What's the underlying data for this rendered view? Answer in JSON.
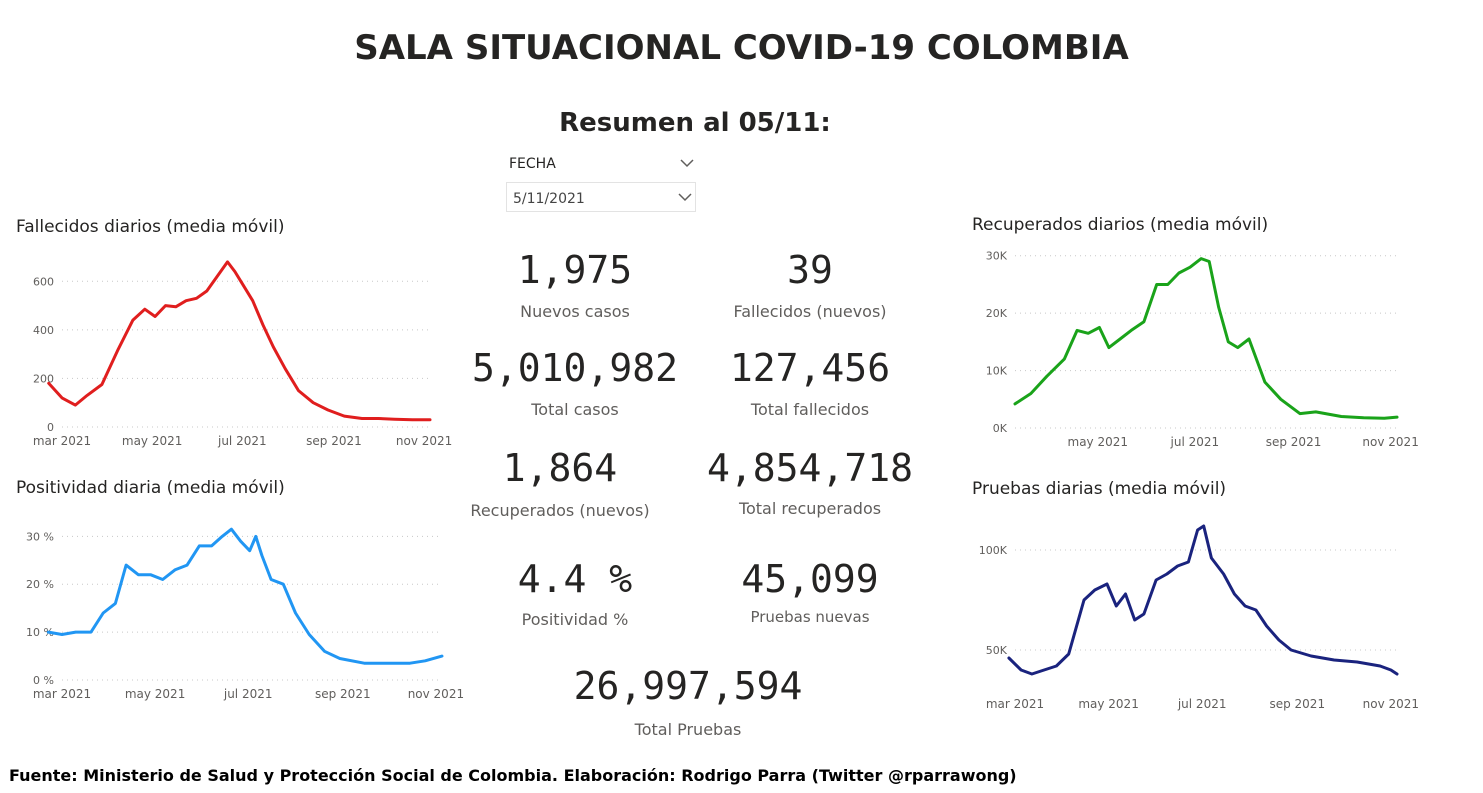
{
  "header": {
    "title": "SALA SITUACIONAL COVID-19 COLOMBIA",
    "subtitle": "Resumen al 05/11:"
  },
  "slicer": {
    "label": "FECHA",
    "value": "5/11/2021"
  },
  "kpis": [
    {
      "value": "1,975",
      "label": "Nuevos casos"
    },
    {
      "value": "39",
      "label": "Fallecidos (nuevos)"
    },
    {
      "value": "5,010,982",
      "label": "Total casos"
    },
    {
      "value": "127,456",
      "label": "Total fallecidos"
    },
    {
      "value": "1,864",
      "label": "Recuperados (nuevos)"
    },
    {
      "value": "4,854,718",
      "label": "Total recuperados"
    },
    {
      "value": "4.4 %",
      "label": "Positividad %"
    },
    {
      "value": "45,099",
      "label": "Pruebas nuevas"
    },
    {
      "value": "26,997,594",
      "label": "Total Pruebas"
    }
  ],
  "footer": "Fuente: Ministerio de Salud y Protección Social de Colombia. Elaboración: Rodrigo Parra (Twitter @rparrawong)",
  "chart_data": [
    {
      "type": "line",
      "title": "Fallecidos diarios (media móvil)",
      "color": "#e01e1e",
      "x_range": [
        "2021-03-01",
        "2021-11-05"
      ],
      "x_ticks": [
        "mar 2021",
        "may 2021",
        "jul 2021",
        "sep 2021",
        "nov 2021"
      ],
      "y_ticks": [
        0,
        200,
        400,
        600
      ],
      "y_tick_labels": [
        "0",
        "200",
        "400",
        "600"
      ],
      "ylim": [
        0,
        700
      ],
      "grid": true,
      "series": [
        {
          "x": [
            "2021-02-20",
            "2021-03-01",
            "2021-03-10",
            "2021-03-18",
            "2021-03-28",
            "2021-04-08",
            "2021-04-18",
            "2021-04-26",
            "2021-05-03",
            "2021-05-10",
            "2021-05-17",
            "2021-05-24",
            "2021-05-31",
            "2021-06-07",
            "2021-06-14",
            "2021-06-21",
            "2021-06-26",
            "2021-07-01",
            "2021-07-08",
            "2021-07-15",
            "2021-07-22",
            "2021-07-30",
            "2021-08-08",
            "2021-08-18",
            "2021-08-28",
            "2021-09-08",
            "2021-09-20",
            "2021-10-01",
            "2021-10-12",
            "2021-10-24",
            "2021-11-05"
          ],
          "y": [
            180,
            120,
            90,
            130,
            175,
            320,
            440,
            485,
            455,
            500,
            495,
            520,
            530,
            560,
            620,
            680,
            640,
            590,
            520,
            420,
            330,
            240,
            150,
            100,
            70,
            45,
            35,
            35,
            32,
            30,
            30
          ]
        }
      ]
    },
    {
      "type": "line",
      "title": "Positividad diaria (media móvil)",
      "color": "#2196f3",
      "x_range": [
        "2021-03-01",
        "2021-11-05"
      ],
      "x_ticks": [
        "mar 2021",
        "may 2021",
        "jul 2021",
        "sep 2021",
        "nov 2021"
      ],
      "y_ticks": [
        0,
        10,
        20,
        30
      ],
      "y_tick_labels": [
        "0 %",
        "10 %",
        "20 %",
        "30 %"
      ],
      "ylim": [
        0,
        33
      ],
      "grid": true,
      "series": [
        {
          "x": [
            "2021-02-20",
            "2021-03-01",
            "2021-03-10",
            "2021-03-20",
            "2021-03-28",
            "2021-04-05",
            "2021-04-12",
            "2021-04-20",
            "2021-04-28",
            "2021-05-06",
            "2021-05-14",
            "2021-05-22",
            "2021-05-30",
            "2021-06-07",
            "2021-06-14",
            "2021-06-20",
            "2021-06-26",
            "2021-07-02",
            "2021-07-06",
            "2021-07-10",
            "2021-07-16",
            "2021-07-24",
            "2021-08-01",
            "2021-08-10",
            "2021-08-20",
            "2021-08-30",
            "2021-09-15",
            "2021-10-01",
            "2021-10-15",
            "2021-10-25",
            "2021-11-05"
          ],
          "y": [
            10,
            9.5,
            10,
            10,
            14,
            16,
            24,
            22,
            22,
            21,
            23,
            24,
            28,
            28,
            30,
            31.5,
            29,
            27,
            30,
            26,
            21,
            20,
            14,
            9.5,
            6,
            4.5,
            3.5,
            3.5,
            3.5,
            4,
            5
          ]
        }
      ]
    },
    {
      "type": "line",
      "title": "Recuperados diarios (media móvil)",
      "color": "#1aa31a",
      "x_range": [
        "2021-03-10",
        "2021-11-05"
      ],
      "x_ticks": [
        "may 2021",
        "jul 2021",
        "sep 2021",
        "nov 2021"
      ],
      "y_ticks": [
        0,
        10000,
        20000,
        30000
      ],
      "y_tick_labels": [
        "0K",
        "10K",
        "20K",
        "30K"
      ],
      "ylim": [
        0,
        31000
      ],
      "grid": true,
      "series": [
        {
          "x": [
            "2021-03-10",
            "2021-03-20",
            "2021-03-30",
            "2021-04-10",
            "2021-04-18",
            "2021-04-25",
            "2021-05-02",
            "2021-05-08",
            "2021-05-15",
            "2021-05-22",
            "2021-05-30",
            "2021-06-07",
            "2021-06-14",
            "2021-06-21",
            "2021-06-28",
            "2021-07-05",
            "2021-07-10",
            "2021-07-16",
            "2021-07-22",
            "2021-07-28",
            "2021-08-04",
            "2021-08-14",
            "2021-08-24",
            "2021-09-05",
            "2021-09-15",
            "2021-10-01",
            "2021-10-15",
            "2021-10-28",
            "2021-11-05"
          ],
          "y": [
            4200,
            6000,
            9000,
            12000,
            17000,
            16500,
            17500,
            14000,
            15500,
            17000,
            18500,
            25000,
            25000,
            27000,
            28000,
            29500,
            29000,
            21000,
            15000,
            14000,
            15500,
            8000,
            5000,
            2500,
            2800,
            2000,
            1800,
            1700,
            1900
          ]
        }
      ]
    },
    {
      "type": "line",
      "title": "Pruebas diarias (media móvil)",
      "color": "#1a237e",
      "x_range": [
        "2021-03-01",
        "2021-11-05"
      ],
      "x_ticks": [
        "mar 2021",
        "may 2021",
        "jul 2021",
        "sep 2021",
        "nov 2021"
      ],
      "y_ticks": [
        50000,
        100000
      ],
      "y_tick_labels": [
        "50K",
        "100K"
      ],
      "ylim": [
        30000,
        115000
      ],
      "grid": true,
      "series": [
        {
          "x": [
            "2021-02-25",
            "2021-03-05",
            "2021-03-12",
            "2021-03-20",
            "2021-03-28",
            "2021-04-05",
            "2021-04-15",
            "2021-04-22",
            "2021-04-30",
            "2021-05-06",
            "2021-05-12",
            "2021-05-18",
            "2021-05-24",
            "2021-06-01",
            "2021-06-08",
            "2021-06-15",
            "2021-06-22",
            "2021-06-28",
            "2021-07-02",
            "2021-07-07",
            "2021-07-15",
            "2021-07-22",
            "2021-07-29",
            "2021-08-05",
            "2021-08-12",
            "2021-08-20",
            "2021-08-28",
            "2021-09-10",
            "2021-09-25",
            "2021-10-10",
            "2021-10-25",
            "2021-11-01",
            "2021-11-05"
          ],
          "y": [
            46000,
            40000,
            38000,
            40000,
            42000,
            48000,
            75000,
            80000,
            83000,
            72000,
            78000,
            65000,
            68000,
            85000,
            88000,
            92000,
            94000,
            110000,
            112000,
            96000,
            88000,
            78000,
            72000,
            70000,
            62000,
            55000,
            50000,
            47000,
            45000,
            44000,
            42000,
            40000,
            38000
          ]
        }
      ]
    }
  ]
}
